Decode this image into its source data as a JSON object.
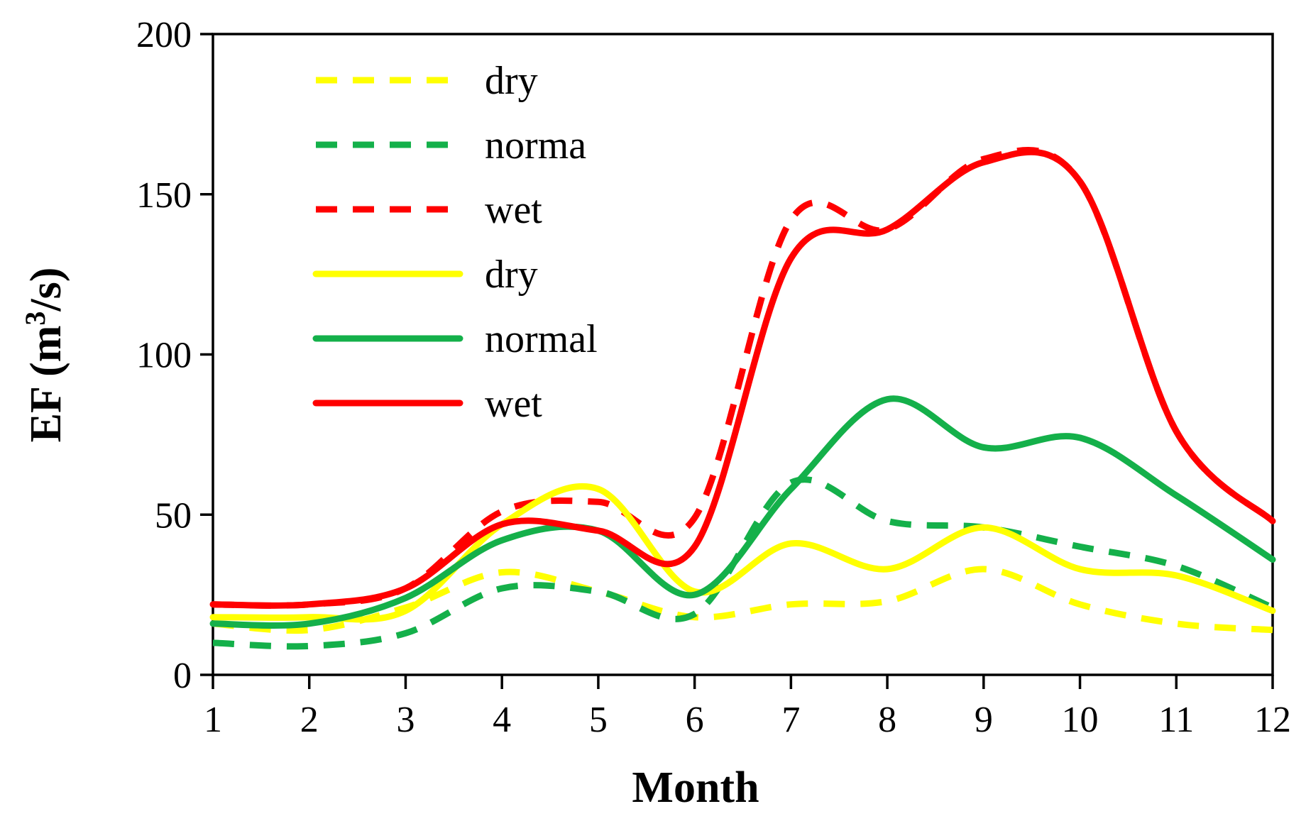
{
  "chart_data": {
    "type": "line",
    "title": "",
    "xlabel": "Month",
    "ylabel_main": "EF (m",
    "ylabel_sup": "3",
    "ylabel_tail": "/s)",
    "xlim": [
      1,
      12
    ],
    "ylim": [
      0,
      200
    ],
    "x_ticks": [
      "1",
      "2",
      "3",
      "4",
      "5",
      "6",
      "7",
      "8",
      "9",
      "10",
      "11",
      "12"
    ],
    "y_ticks": [
      "0",
      "50",
      "100",
      "150",
      "200"
    ],
    "grid": false,
    "legend_position": "top-left",
    "x": [
      1,
      2,
      3,
      4,
      5,
      6,
      7,
      8,
      9,
      10,
      11,
      12
    ],
    "series": [
      {
        "name": "dry",
        "color": "#FFFF00",
        "dashed": true,
        "values": [
          16,
          14,
          21,
          32,
          26,
          18,
          22,
          23,
          33,
          22,
          16,
          14
        ]
      },
      {
        "name": "norma",
        "color": "#14B04A",
        "dashed": true,
        "values": [
          10,
          9,
          13,
          27,
          26,
          19,
          60,
          48,
          46,
          40,
          34,
          21
        ]
      },
      {
        "name": "wet",
        "color": "#FF0000",
        "dashed": true,
        "values": [
          22,
          22,
          27,
          51,
          54,
          49,
          142,
          139,
          161,
          154,
          76,
          48
        ]
      },
      {
        "name": "dry",
        "color": "#FFFF00",
        "dashed": false,
        "values": [
          18,
          18,
          20,
          47,
          58,
          26,
          41,
          33,
          46,
          33,
          31,
          20
        ]
      },
      {
        "name": "normal",
        "color": "#14B04A",
        "dashed": false,
        "values": [
          16,
          16,
          24,
          42,
          45,
          25,
          58,
          86,
          71,
          74,
          56,
          36
        ]
      },
      {
        "name": "wet",
        "color": "#FF0000",
        "dashed": false,
        "values": [
          22,
          22,
          27,
          47,
          45,
          40,
          130,
          139,
          160,
          154,
          76,
          48
        ]
      }
    ]
  }
}
